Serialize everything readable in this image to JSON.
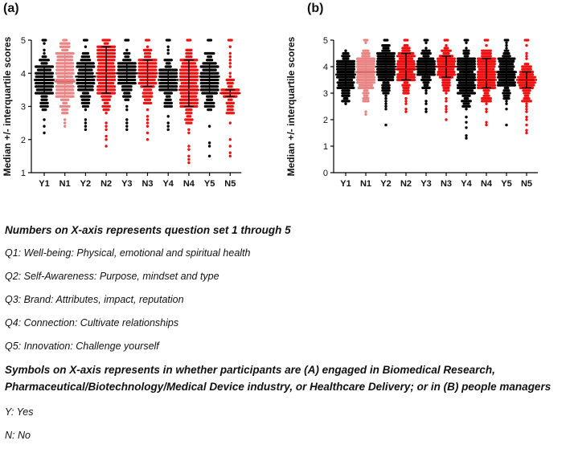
{
  "chart_data": [
    {
      "type": "scatter",
      "panel_label": "(a)",
      "ylabel": "Median +/- interquartile scores",
      "xlabel": "",
      "ylim": [
        1,
        5
      ],
      "yticks": [
        1,
        2,
        3,
        4,
        5
      ],
      "grid": false,
      "categories": [
        "Y1",
        "N1",
        "Y2",
        "N2",
        "Y3",
        "N3",
        "Y4",
        "N4",
        "Y5",
        "N5"
      ],
      "colors": [
        "#000000",
        "#e98585",
        "#000000",
        "#ee1111",
        "#000000",
        "#ee1111",
        "#000000",
        "#ee1111",
        "#000000",
        "#ee1111"
      ],
      "median": [
        3.8,
        3.75,
        3.9,
        4.0,
        4.0,
        4.0,
        3.8,
        3.5,
        3.9,
        3.4
      ],
      "q1": [
        3.4,
        3.3,
        3.5,
        3.4,
        3.7,
        3.6,
        3.5,
        3.0,
        3.4,
        3.3
      ],
      "q3": [
        4.2,
        4.6,
        4.3,
        4.8,
        4.3,
        4.4,
        4.1,
        4.4,
        4.3,
        3.5
      ],
      "min": [
        2.2,
        2.4,
        2.3,
        1.8,
        2.3,
        2.0,
        2.3,
        1.3,
        1.5,
        1.5
      ],
      "max": [
        5.0,
        5.0,
        5.0,
        5.0,
        5.0,
        5.0,
        5.0,
        5.0,
        5.0,
        5.0
      ]
    },
    {
      "type": "scatter",
      "panel_label": "(b)",
      "ylabel": "Median +/- interquartile scores",
      "xlabel": "",
      "ylim": [
        0,
        5
      ],
      "yticks": [
        0,
        1,
        2,
        3,
        4,
        5
      ],
      "grid": false,
      "categories": [
        "Y1",
        "N1",
        "Y2",
        "N2",
        "Y3",
        "N3",
        "Y4",
        "N4",
        "Y5",
        "N5"
      ],
      "colors": [
        "#000000",
        "#e98585",
        "#000000",
        "#ee1111",
        "#000000",
        "#ee1111",
        "#000000",
        "#ee1111",
        "#000000",
        "#ee1111"
      ],
      "median": [
        3.7,
        3.8,
        4.0,
        3.9,
        4.0,
        4.0,
        3.5,
        3.5,
        3.8,
        3.5
      ],
      "q1": [
        3.2,
        3.2,
        3.5,
        3.5,
        3.7,
        3.6,
        3.0,
        3.2,
        3.3,
        3.2
      ],
      "q3": [
        4.2,
        4.3,
        4.5,
        4.5,
        4.3,
        4.4,
        4.3,
        4.3,
        4.3,
        3.8
      ],
      "min": [
        2.6,
        2.2,
        1.8,
        2.3,
        2.3,
        2.0,
        1.3,
        1.8,
        1.8,
        1.5
      ],
      "max": [
        4.6,
        5.0,
        5.0,
        5.0,
        5.0,
        5.0,
        5.0,
        5.0,
        5.0,
        5.0
      ]
    }
  ],
  "notes": {
    "heading1": "Numbers on X-axis represents question set 1 through 5",
    "q1": "Q1: Well-being: Physical, emotional and spiritual health",
    "q2": "Q2: Self-Awareness: Purpose, mindset and type",
    "q3": "Q3: Brand: Attributes, impact, reputation",
    "q4": "Q4: Connection: Cultivate relationships",
    "q5": "Q5: Innovation: Challenge yourself",
    "heading2": "Symbols on X-axis represents in whether participants are (A) engaged in Biomedical Research, Pharmaceutical/Biotechnology/Medical Device industry, or Healthcare Delivery; or in (B) people managers",
    "yes": "Y: Yes",
    "no": "N: No"
  }
}
